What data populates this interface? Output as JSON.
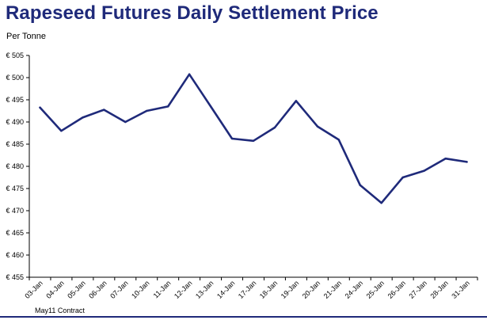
{
  "header": {
    "title": "Rapeseed Futures Daily Settlement Price",
    "units_label": "Per Tonne"
  },
  "footer": {
    "contract_label": "May11 Contract"
  },
  "chart_data": {
    "type": "line",
    "title": "Rapeseed Futures Daily Settlement Price",
    "ylabel": "Per Tonne",
    "xlabel": "",
    "ylim": [
      455,
      505
    ],
    "y_step": 5,
    "y_tick_prefix": "€ ",
    "grid": false,
    "line_color": "#1f2a7a",
    "categories": [
      "03-Jan",
      "04-Jan",
      "05-Jan",
      "06-Jan",
      "07-Jan",
      "10-Jan",
      "11-Jan",
      "12-Jan",
      "13-Jan",
      "14-Jan",
      "17-Jan",
      "18-Jan",
      "19-Jan",
      "20-Jan",
      "21-Jan",
      "24-Jan",
      "25-Jan",
      "26-Jan",
      "27-Jan",
      "28-Jan",
      "31-Jan"
    ],
    "values": [
      493.25,
      488.0,
      491.0,
      492.75,
      490.0,
      492.5,
      493.5,
      500.75,
      493.5,
      486.25,
      485.75,
      488.75,
      494.75,
      489.0,
      486.0,
      475.75,
      471.75,
      477.5,
      479.0,
      481.75,
      481.0
    ]
  }
}
